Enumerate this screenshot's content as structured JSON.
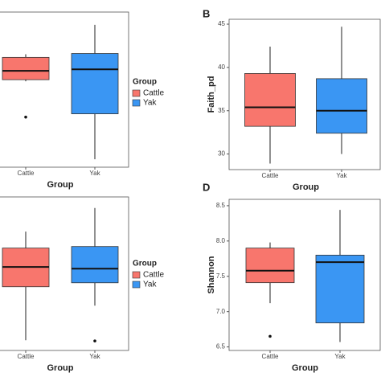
{
  "chart_data": [
    {
      "type": "box",
      "xlabel": "Group",
      "categories": [
        "Cattle",
        "Yak"
      ],
      "colors": [
        "#f8766d",
        "#3a96f3"
      ],
      "legend_title": "Group",
      "ylim": [
        0,
        100
      ],
      "boxes": [
        {
          "min": 55.4,
          "q1": 56.4,
          "median": 62.1,
          "q3": 70.8,
          "max": 72.8,
          "outliers": [
            32.3
          ]
        },
        {
          "min": 5.1,
          "q1": 34.4,
          "median": 63.1,
          "q3": 73.3,
          "max": 91.8,
          "outliers": []
        }
      ]
    },
    {
      "type": "box",
      "label": "B",
      "xlabel": "Group",
      "ylabel": "Faith_pd",
      "categories": [
        "Cattle",
        "Yak"
      ],
      "colors": [
        "#f8766d",
        "#3a96f3"
      ],
      "ylim": [
        28.2,
        45.56
      ],
      "yticks": [
        30,
        35,
        40,
        45
      ],
      "boxes": [
        {
          "min": 28.9,
          "q1": 33.2,
          "median": 35.4,
          "q3": 39.3,
          "max": 42.4,
          "outliers": []
        },
        {
          "min": 30.0,
          "q1": 32.4,
          "median": 35.0,
          "q3": 38.7,
          "max": 44.7,
          "outliers": []
        }
      ]
    },
    {
      "type": "box",
      "xlabel": "Group",
      "categories": [
        "Cattle",
        "Yak"
      ],
      "colors": [
        "#f8766d",
        "#3a96f3"
      ],
      "legend_title": "Group",
      "ylim": [
        0,
        100
      ],
      "boxes": [
        {
          "min": 6.7,
          "q1": 41.5,
          "median": 54.4,
          "q3": 66.7,
          "max": 77.4,
          "outliers": []
        },
        {
          "min": 29.2,
          "q1": 44.1,
          "median": 53.3,
          "q3": 67.7,
          "max": 92.8,
          "outliers": [
            6.2
          ]
        }
      ]
    },
    {
      "type": "box",
      "label": "D",
      "xlabel": "Group",
      "ylabel": "Shannon",
      "categories": [
        "Cattle",
        "Yak"
      ],
      "colors": [
        "#f8766d",
        "#3a96f3"
      ],
      "ylim": [
        6.45,
        8.59
      ],
      "yticks": [
        6.5,
        {
          "value": 7,
          "label": "7.0"
        },
        7.5,
        {
          "value": 8,
          "label": "8.0"
        },
        8.5
      ],
      "boxes": [
        {
          "min": 7.12,
          "q1": 7.41,
          "median": 7.58,
          "q3": 7.9,
          "max": 7.98,
          "outliers": [
            6.65
          ]
        },
        {
          "min": 6.57,
          "q1": 6.84,
          "median": 7.7,
          "q3": 7.8,
          "max": 8.44,
          "outliers": []
        }
      ]
    }
  ]
}
